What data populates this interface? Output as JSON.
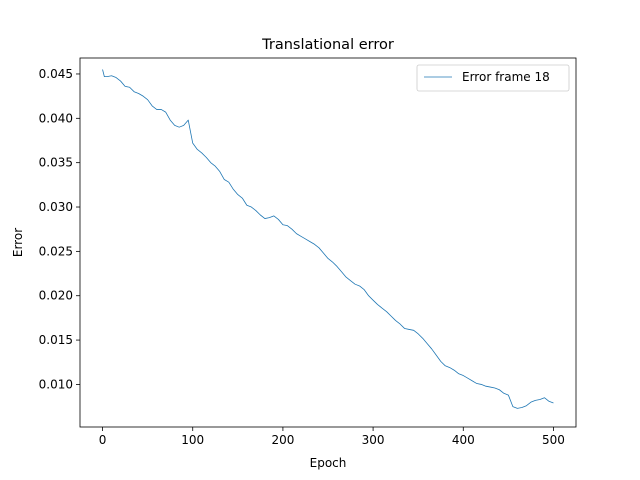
{
  "chart_data": {
    "type": "line",
    "title": "Translational error",
    "xlabel": "Epoch",
    "ylabel": "Error",
    "xlim": [
      -25,
      525
    ],
    "ylim": [
      0.0052,
      0.0468
    ],
    "xticks": [
      0,
      100,
      200,
      300,
      400,
      500
    ],
    "yticks": [
      0.01,
      0.015,
      0.02,
      0.025,
      0.03,
      0.035,
      0.04,
      0.045
    ],
    "xtick_labels": [
      "0",
      "100",
      "200",
      "300",
      "400",
      "500"
    ],
    "ytick_labels": [
      "0.010",
      "0.015",
      "0.020",
      "0.025",
      "0.030",
      "0.035",
      "0.040",
      "0.045"
    ],
    "grid": false,
    "legend_position": "top-right",
    "series": [
      {
        "name": "Error frame 18",
        "color": "#1f77b4",
        "x": [
          0,
          2,
          5,
          10,
          15,
          20,
          25,
          30,
          35,
          40,
          45,
          50,
          55,
          60,
          65,
          70,
          75,
          80,
          85,
          90,
          95,
          100,
          105,
          110,
          115,
          120,
          125,
          130,
          135,
          140,
          145,
          150,
          155,
          160,
          165,
          170,
          175,
          180,
          185,
          190,
          195,
          200,
          205,
          210,
          215,
          220,
          225,
          230,
          235,
          240,
          245,
          250,
          255,
          260,
          265,
          270,
          275,
          280,
          285,
          290,
          295,
          300,
          305,
          310,
          315,
          320,
          325,
          330,
          335,
          340,
          345,
          350,
          355,
          360,
          365,
          370,
          375,
          380,
          385,
          390,
          395,
          400,
          405,
          410,
          415,
          420,
          425,
          430,
          435,
          440,
          445,
          450,
          455,
          460,
          465,
          470,
          475,
          480,
          485,
          490,
          495,
          500
        ],
        "y": [
          0.0455,
          0.0447,
          0.0447,
          0.0448,
          0.0446,
          0.0442,
          0.0436,
          0.0435,
          0.043,
          0.0428,
          0.0425,
          0.0421,
          0.0414,
          0.041,
          0.041,
          0.0407,
          0.0398,
          0.0392,
          0.039,
          0.0392,
          0.0398,
          0.0372,
          0.0365,
          0.0361,
          0.0356,
          0.035,
          0.0346,
          0.034,
          0.0331,
          0.0328,
          0.032,
          0.0314,
          0.031,
          0.0302,
          0.03,
          0.0296,
          0.0291,
          0.0287,
          0.0288,
          0.029,
          0.0286,
          0.028,
          0.0279,
          0.0275,
          0.027,
          0.0267,
          0.0264,
          0.0261,
          0.0258,
          0.0254,
          0.0248,
          0.0242,
          0.0238,
          0.0233,
          0.0227,
          0.0221,
          0.0217,
          0.0213,
          0.0211,
          0.0207,
          0.02,
          0.0195,
          0.019,
          0.0186,
          0.0182,
          0.0177,
          0.0172,
          0.0168,
          0.0163,
          0.0162,
          0.0161,
          0.0157,
          0.0152,
          0.0146,
          0.014,
          0.0133,
          0.0126,
          0.0121,
          0.0119,
          0.0116,
          0.0112,
          0.011,
          0.0107,
          0.0104,
          0.0101,
          0.01,
          0.0098,
          0.0097,
          0.0096,
          0.0094,
          0.009,
          0.0088,
          0.0075,
          0.0073,
          0.0074,
          0.0076,
          0.008,
          0.0082,
          0.0083,
          0.0085,
          0.0081,
          0.0079
        ]
      }
    ]
  }
}
